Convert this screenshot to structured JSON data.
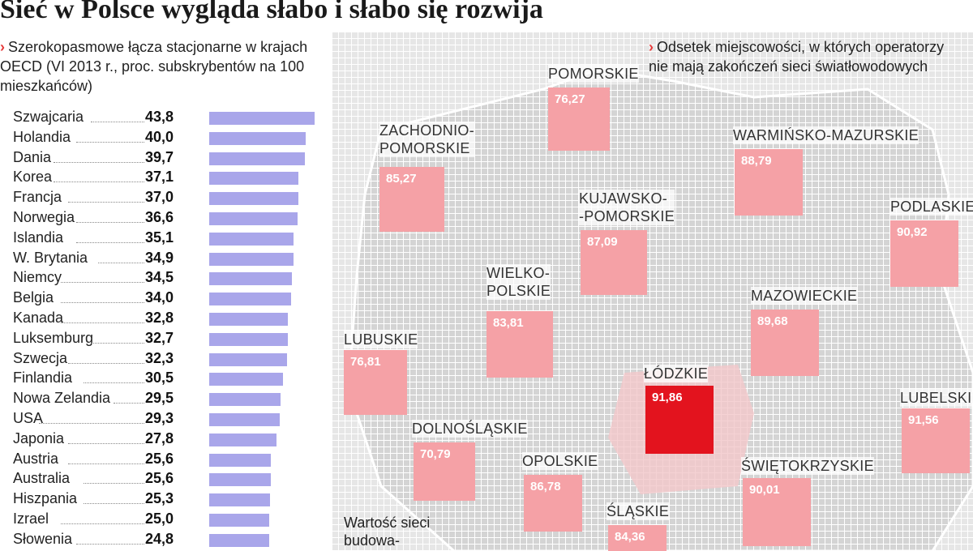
{
  "title": "Sieć w Polsce wygląda słabo i słabo się rozwija",
  "left_caption": "Szerokopasmowe łącza stacjonarne w krajach OECD (VI 2013 r., proc. subskrybentów na 100 mieszkańców)",
  "right_caption": "Odsetek miejscowości, w których operatorzy nie mają zakończeń sieci światłowodowych",
  "marker": "›",
  "note": "Wartość sieci budowa-",
  "colors": {
    "bar": "#a9a6ea",
    "region": "#f5a1a6",
    "region_highlight": "#e3131e",
    "map_grid": "#e6e6e6",
    "map_poland": "#cfcfcf"
  },
  "chart_data": [
    {
      "type": "bar",
      "orientation": "horizontal",
      "title": "Szerokopasmowe łącza stacjonarne w krajach OECD (VI 2013 r., proc. subskrybentów na 100 mieszkańców)",
      "categories": [
        "Szwajcaria",
        "Holandia",
        "Dania",
        "Korea",
        "Francja",
        "Norwegia",
        "Islandia",
        "W. Brytania",
        "Niemcy",
        "Belgia",
        "Kanada",
        "Luksemburg",
        "Szwecja",
        "Finlandia",
        "Nowa Zelandia",
        "USA",
        "Japonia",
        "Austria",
        "Australia",
        "Hiszpania",
        "Izrael",
        "Słowenia"
      ],
      "values": [
        43.8,
        40.0,
        39.7,
        37.1,
        37.0,
        36.6,
        35.1,
        34.9,
        34.5,
        34.0,
        32.8,
        32.7,
        32.3,
        30.5,
        29.5,
        29.3,
        27.8,
        25.6,
        25.6,
        25.3,
        25.0,
        24.8
      ],
      "value_labels": [
        "43,8",
        "40,0",
        "39,7",
        "37,1",
        "37,0",
        "36,6",
        "35,1",
        "34,9",
        "34,5",
        "34,0",
        "32,8",
        "32,7",
        "32,3",
        "30,5",
        "29,5",
        "29,3",
        "27,8",
        "25,6",
        "25,6",
        "25,3",
        "25,0",
        "24,8"
      ],
      "xlim": [
        0,
        43.8
      ]
    },
    {
      "type": "map",
      "title": "Odsetek miejscowości, w których operatorzy nie mają zakończeń sieci światłowodowych",
      "regions": [
        {
          "name": "POMORSKIE",
          "value": 76.27,
          "value_label": "76,27",
          "highlight": false
        },
        {
          "name": "ZACHODNIO-POMORSKIE",
          "value": 85.27,
          "value_label": "85,27",
          "highlight": false
        },
        {
          "name": "WARMIŃSKO-MAZURSKIE",
          "value": 88.79,
          "value_label": "88,79",
          "highlight": false
        },
        {
          "name": "KUJAWSKO-POMORSKIE",
          "value": 87.09,
          "value_label": "87,09",
          "highlight": false
        },
        {
          "name": "PODLASKIE",
          "value": 90.92,
          "value_label": "90,92",
          "highlight": false
        },
        {
          "name": "WIELKO-POLSKIE",
          "value": 83.81,
          "value_label": "83,81",
          "highlight": false
        },
        {
          "name": "MAZOWIECKIE",
          "value": 89.68,
          "value_label": "89,68",
          "highlight": false
        },
        {
          "name": "LUBUSKIE",
          "value": 76.81,
          "value_label": "76,81",
          "highlight": false
        },
        {
          "name": "ŁÓDZKIE",
          "value": 91.86,
          "value_label": "91,86",
          "highlight": true
        },
        {
          "name": "LUBELSKIE",
          "value": 91.56,
          "value_label": "91,56",
          "highlight": false
        },
        {
          "name": "DOLNOŚLĄSKIE",
          "value": 70.79,
          "value_label": "70,79",
          "highlight": false
        },
        {
          "name": "OPOLSKIE",
          "value": 86.78,
          "value_label": "86,78",
          "highlight": false
        },
        {
          "name": "ŚWIĘTOKRZYSKIE",
          "value": 90.01,
          "value_label": "90,01",
          "highlight": false
        },
        {
          "name": "ŚLĄSKIE",
          "value": 84.36,
          "value_label": "84,36",
          "highlight": false
        }
      ]
    }
  ]
}
